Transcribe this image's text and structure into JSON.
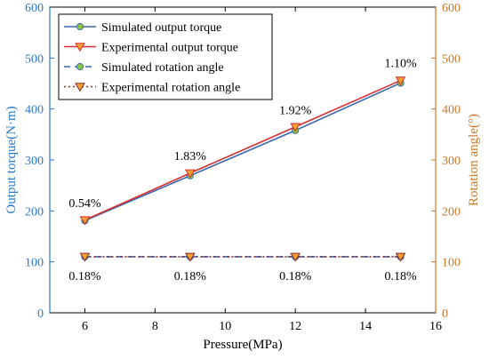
{
  "chart_data": {
    "type": "line",
    "xlabel": "Pressure(MPa)",
    "ylabel_left": "Output torque(N·m)",
    "ylabel_right": "Rotation angle(°)",
    "xlim": [
      5,
      16
    ],
    "ylim_left": [
      0,
      600
    ],
    "ylim_right": [
      0,
      600
    ],
    "x_ticks": [
      6,
      8,
      10,
      12,
      14,
      16
    ],
    "y_ticks_left": [
      0,
      100,
      200,
      300,
      400,
      500,
      600
    ],
    "y_ticks_right": [
      0,
      100,
      200,
      300,
      400,
      500,
      600
    ],
    "grid": false,
    "legend_position": "top-left",
    "x": [
      6,
      9,
      12,
      15
    ],
    "series": [
      {
        "name": "Simulated output torque",
        "axis": "left",
        "values": [
          181,
          269,
          358,
          451
        ],
        "color": "#3b67b0",
        "line_style": "solid",
        "marker": "circle",
        "marker_fill": "#8cc63f"
      },
      {
        "name": "Experimental output torque",
        "axis": "left",
        "values": [
          182,
          274,
          365,
          456
        ],
        "color": "#d62f2f",
        "line_style": "solid",
        "marker": "triangle-down",
        "marker_fill": "#f0a030"
      },
      {
        "name": "Simulated rotation angle",
        "axis": "right",
        "values": [
          110,
          110,
          110,
          110
        ],
        "color": "#3b67b0",
        "line_style": "dashed",
        "marker": "circle",
        "marker_fill": "#8cc63f"
      },
      {
        "name": "Experimental rotation angle",
        "axis": "right",
        "values": [
          110,
          110,
          110,
          110
        ],
        "color": "#8b2a2a",
        "line_style": "dotted",
        "marker": "triangle-down",
        "marker_fill": "#f0a030"
      }
    ],
    "annotations": [
      {
        "x": 6,
        "y": 180,
        "axis": "left",
        "text": "0.54%",
        "position": "above"
      },
      {
        "x": 9,
        "y": 272,
        "axis": "left",
        "text": "1.83%",
        "position": "above"
      },
      {
        "x": 12,
        "y": 362,
        "axis": "left",
        "text": "1.92%",
        "position": "above"
      },
      {
        "x": 15,
        "y": 454,
        "axis": "left",
        "text": "1.10%",
        "position": "above"
      },
      {
        "x": 6,
        "y": 110,
        "axis": "right",
        "text": "0.18%",
        "position": "below"
      },
      {
        "x": 9,
        "y": 110,
        "axis": "right",
        "text": "0.18%",
        "position": "below"
      },
      {
        "x": 12,
        "y": 110,
        "axis": "right",
        "text": "0.18%",
        "position": "below"
      },
      {
        "x": 15,
        "y": 110,
        "axis": "right",
        "text": "0.18%",
        "position": "below"
      }
    ],
    "colors": {
      "left_axis": "#2a78c8",
      "right_axis": "#c8782a",
      "axis_line": "#000000"
    }
  }
}
